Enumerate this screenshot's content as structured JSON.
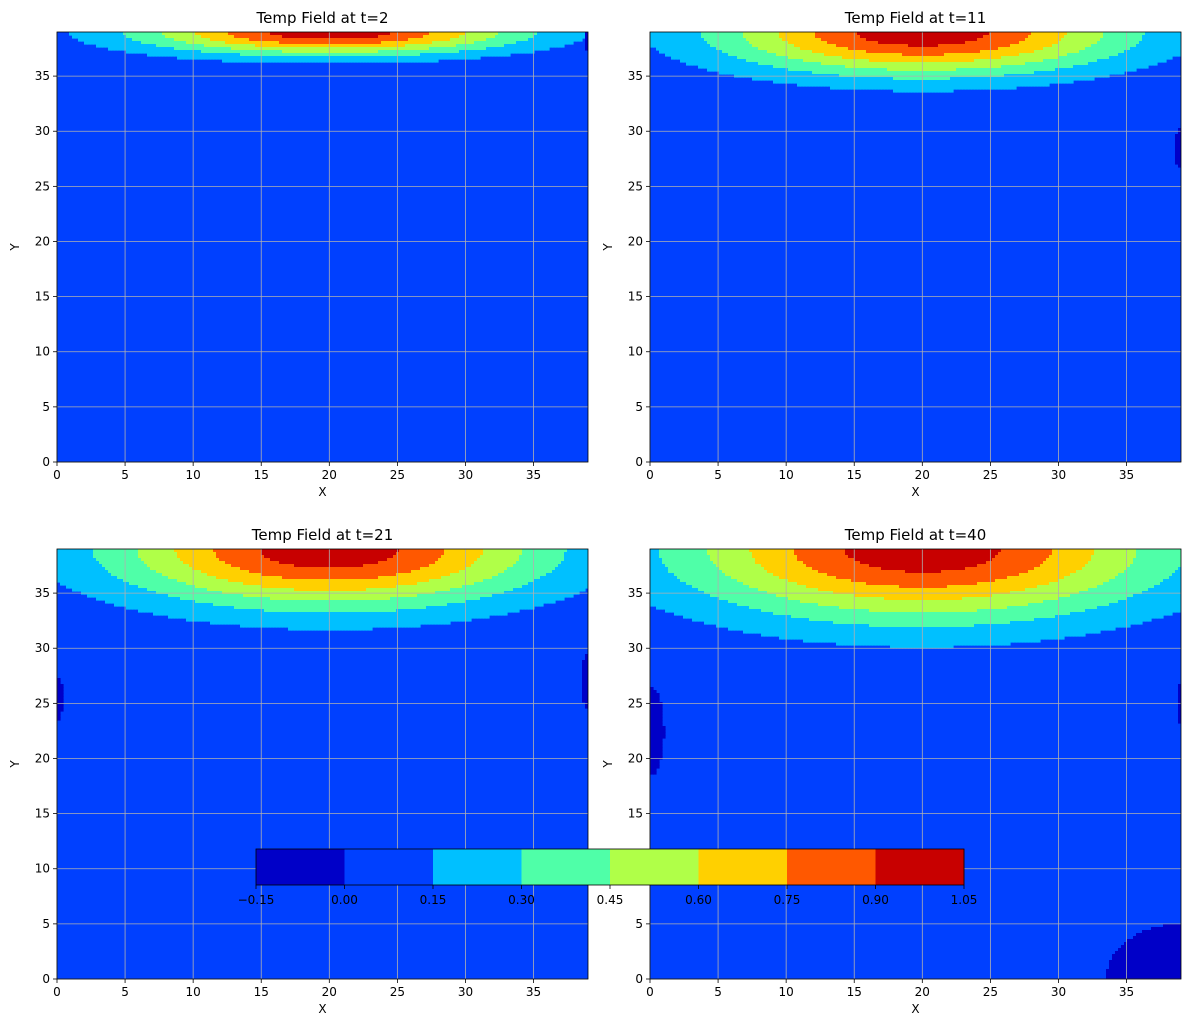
{
  "chart_data": {
    "type": "heatmap",
    "colormap": "jet",
    "grid": true,
    "shared_colorbar": {
      "orientation": "horizontal",
      "placement": "overlapping bottom panels, centered",
      "levels": [
        -0.15,
        0.0,
        0.15,
        0.3,
        0.45,
        0.6,
        0.75,
        0.9,
        1.05
      ],
      "tick_labels": [
        "−0.15",
        "0.00",
        "0.15",
        "0.30",
        "0.45",
        "0.60",
        "0.75",
        "0.90",
        "1.05"
      ],
      "colors": [
        "#0000c8",
        "#0040ff",
        "#00c0ff",
        "#4fffa8",
        "#b0ff48",
        "#ffd000",
        "#ff5800",
        "#c80000"
      ]
    },
    "panels": [
      {
        "title": "Temp Field at t=2",
        "xlabel": "X",
        "ylabel": "Y",
        "xlim": [
          0,
          39
        ],
        "ylim": [
          0,
          39
        ],
        "xticks": [
          0,
          5,
          10,
          15,
          20,
          25,
          30,
          35
        ],
        "yticks": [
          0,
          5,
          10,
          15,
          20,
          25,
          30,
          35
        ],
        "source": {
          "x0": 20,
          "y0": 39,
          "sx": 9.8,
          "sy": 1.46,
          "amp": 1.0
        },
        "cold_spots": [
          {
            "x": 39,
            "y": 38.2,
            "rx": 0.3,
            "ry": 0.8
          }
        ]
      },
      {
        "title": "Temp Field at t=11",
        "xlabel": "X",
        "ylabel": "Y",
        "xlim": [
          0,
          39
        ],
        "ylim": [
          0,
          39
        ],
        "xticks": [
          0,
          5,
          10,
          15,
          20,
          25,
          30,
          35
        ],
        "yticks": [
          0,
          5,
          10,
          15,
          20,
          25,
          30,
          35
        ],
        "source": {
          "x0": 20,
          "y0": 39,
          "sx": 10.5,
          "sy": 2.74,
          "amp": 1.0
        },
        "cold_spots": [
          {
            "x": 39,
            "y": 28.5,
            "rx": 0.5,
            "ry": 1.8
          }
        ]
      },
      {
        "title": "Temp Field at t=21",
        "xlabel": "X",
        "ylabel": "Y",
        "xlim": [
          0,
          39
        ],
        "ylim": [
          0,
          39
        ],
        "xticks": [
          0,
          5,
          10,
          15,
          20,
          25,
          30,
          35
        ],
        "yticks": [
          0,
          5,
          10,
          15,
          20,
          25,
          30,
          35
        ],
        "source": {
          "x0": 20,
          "y0": 39,
          "sx": 11.2,
          "sy": 3.74,
          "amp": 1.0
        },
        "cold_spots": [
          {
            "x": 0,
            "y": 25.5,
            "rx": 0.4,
            "ry": 2
          },
          {
            "x": 39,
            "y": 27,
            "rx": 0.5,
            "ry": 2.5
          }
        ]
      },
      {
        "title": "Temp Field at t=40",
        "xlabel": "X",
        "ylabel": "Y",
        "xlim": [
          0,
          39
        ],
        "ylim": [
          0,
          39
        ],
        "xticks": [
          0,
          5,
          10,
          15,
          20,
          25,
          30,
          35
        ],
        "yticks": [
          0,
          5,
          10,
          15,
          20,
          25,
          30,
          35
        ],
        "source": {
          "x0": 20,
          "y0": 39,
          "sx": 12.5,
          "sy": 4.56,
          "amp": 1.0
        },
        "cold_spots": [
          {
            "x": 0,
            "y": 22.5,
            "rx": 1,
            "ry": 4
          },
          {
            "x": 39,
            "y": 25,
            "rx": 0.3,
            "ry": 2
          },
          {
            "x": 39,
            "y": 0,
            "rx": 5.5,
            "ry": 5
          }
        ]
      }
    ]
  }
}
